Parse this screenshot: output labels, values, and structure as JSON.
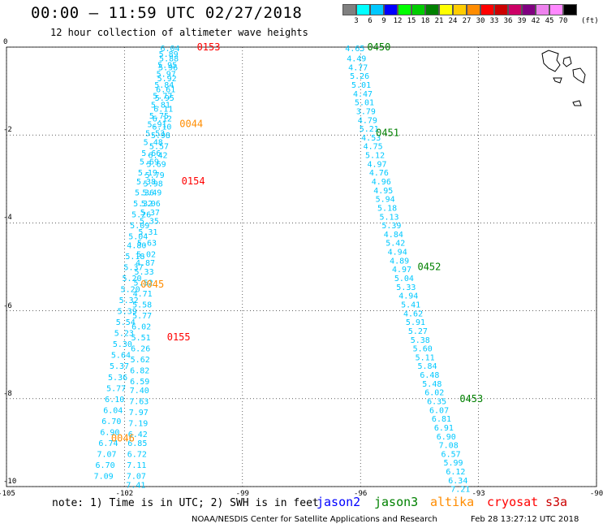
{
  "header": {
    "title": "00:00 – 11:59 UTC 02/27/2018",
    "subtitle": "12 hour collection of altimeter wave heights",
    "unit": "(ft)"
  },
  "scale": {
    "labels": [
      "3",
      "6",
      "9",
      "12",
      "15",
      "18",
      "21",
      "24",
      "27",
      "30",
      "33",
      "36",
      "39",
      "42",
      "45",
      "70"
    ],
    "colors": [
      "#808080",
      "#00ffff",
      "#00c8ff",
      "#0000ff",
      "#00ff00",
      "#00cc00",
      "#008000",
      "#ffff00",
      "#ffcc00",
      "#ff8c00",
      "#ff0000",
      "#cc0000",
      "#cc0066",
      "#800080",
      "#ee82ee",
      "#ff88ff",
      "#000000"
    ]
  },
  "footer": {
    "note": "note: 1) Time is in UTC; 2) SWH is in feet",
    "legend": [
      {
        "name": "jason2",
        "color": "#0000ff"
      },
      {
        "name": "jason3",
        "color": "#008000"
      },
      {
        "name": "altika",
        "color": "#ff8c00"
      },
      {
        "name": "cryosat",
        "color": "#ff0000"
      },
      {
        "name": "s3a",
        "color": "#cc0000"
      }
    ],
    "credit": "NOAA/NESDIS Center for Satellite Applications and Research",
    "timestamp": "Feb 28 13:27:12 UTC 2018"
  },
  "chart_data": {
    "type": "scatter",
    "xlim": [
      -105,
      -90
    ],
    "ylim": [
      -10,
      0
    ],
    "xticks": [
      "-105",
      "-102",
      "-99",
      "-96",
      "-93",
      "-90"
    ],
    "yticks": [
      "0",
      "-2",
      "-4",
      "-6",
      "-8",
      "-10"
    ],
    "grid": true,
    "point_color": "#00c8ff",
    "tracks": [
      {
        "points": [
          [
            -101.09,
            -0.02,
            "6.04"
          ],
          [
            -101.12,
            -0.25,
            "5.88"
          ],
          [
            -101.14,
            -0.45,
            "5.96"
          ],
          [
            -101.17,
            -0.7,
            "5.92"
          ],
          [
            -101.2,
            -0.95,
            "6.61"
          ],
          [
            -101.23,
            -1.15,
            "5.95"
          ],
          [
            -101.26,
            -1.4,
            "6.11"
          ],
          [
            -101.29,
            -1.62,
            "6.12"
          ],
          [
            -101.3,
            -1.8,
            "6.10"
          ],
          [
            -101.33,
            -2.0,
            "5.98"
          ],
          [
            -101.37,
            -2.25,
            "5.57"
          ],
          [
            -101.4,
            -2.45,
            "6.42"
          ],
          [
            -101.44,
            -2.65,
            "5.69"
          ],
          [
            -101.48,
            -2.9,
            "5.79"
          ],
          [
            -101.52,
            -3.1,
            "5.98"
          ],
          [
            -101.55,
            -3.3,
            "5.49"
          ],
          [
            -101.58,
            -3.55,
            "5.06"
          ],
          [
            -101.6,
            -3.75,
            "5.37"
          ],
          [
            -101.62,
            -3.95,
            "5.35"
          ],
          [
            -101.65,
            -4.2,
            "5.31"
          ],
          [
            -101.68,
            -4.45,
            "5.63"
          ],
          [
            -101.7,
            -4.7,
            "5.02"
          ],
          [
            -101.72,
            -4.9,
            "4.87"
          ],
          [
            -101.75,
            -5.1,
            "5.33"
          ],
          [
            -101.77,
            -5.35,
            "5.52"
          ],
          [
            -101.79,
            -5.6,
            "4.71"
          ],
          [
            -101.8,
            -5.85,
            "5.58"
          ],
          [
            -101.8,
            -6.1,
            "5.77"
          ],
          [
            -101.82,
            -6.35,
            "6.02"
          ],
          [
            -101.83,
            -6.6,
            "5.51"
          ],
          [
            -101.84,
            -6.85,
            "6.26"
          ],
          [
            -101.85,
            -7.1,
            "5.62"
          ],
          [
            -101.86,
            -7.35,
            "6.82"
          ],
          [
            -101.86,
            -7.6,
            "6.59"
          ],
          [
            -101.87,
            -7.8,
            "7.40"
          ],
          [
            -101.88,
            -8.05,
            "7.63"
          ],
          [
            -101.89,
            -8.3,
            "7.97"
          ],
          [
            -101.9,
            -8.55,
            "7.19"
          ],
          [
            -101.91,
            -8.8,
            "6.42"
          ],
          [
            -101.92,
            -9.0,
            "6.85"
          ],
          [
            -101.93,
            -9.25,
            "6.72"
          ],
          [
            -101.94,
            -9.5,
            "7.11"
          ],
          [
            -101.95,
            -9.75,
            "7.07"
          ],
          [
            -101.96,
            -9.95,
            "7.41"
          ]
        ]
      },
      {
        "points": [
          [
            -101.13,
            -0.15,
            "5.89"
          ],
          [
            -101.16,
            -0.4,
            "5.95"
          ],
          [
            -101.19,
            -0.6,
            "5.97"
          ],
          [
            -101.24,
            -0.85,
            "5.84"
          ],
          [
            -101.28,
            -1.1,
            "5.77"
          ],
          [
            -101.33,
            -1.3,
            "5.81"
          ],
          [
            -101.37,
            -1.55,
            "5.75"
          ],
          [
            -101.42,
            -1.75,
            "5.91"
          ],
          [
            -101.47,
            -1.95,
            "5.53"
          ],
          [
            -101.52,
            -2.15,
            "5.48"
          ],
          [
            -101.57,
            -2.4,
            "5.66"
          ],
          [
            -101.62,
            -2.6,
            "5.69"
          ],
          [
            -101.66,
            -2.85,
            "5.19"
          ],
          [
            -101.7,
            -3.05,
            "5.38"
          ],
          [
            -101.74,
            -3.3,
            "5.36"
          ],
          [
            -101.78,
            -3.55,
            "5.32"
          ],
          [
            -101.82,
            -3.8,
            "5.26"
          ],
          [
            -101.86,
            -4.05,
            "5.09"
          ],
          [
            -101.9,
            -4.3,
            "5.04"
          ],
          [
            -101.94,
            -4.5,
            "4.80"
          ],
          [
            -101.98,
            -4.75,
            "5.18"
          ],
          [
            -102.02,
            -5.0,
            "5.37"
          ],
          [
            -102.06,
            -5.25,
            "5.20"
          ],
          [
            -102.1,
            -5.5,
            "5.20"
          ],
          [
            -102.14,
            -5.75,
            "5.32"
          ],
          [
            -102.18,
            -6.0,
            "5.39"
          ],
          [
            -102.22,
            -6.25,
            "5.54"
          ],
          [
            -102.26,
            -6.5,
            "5.23"
          ],
          [
            -102.3,
            -6.75,
            "5.30"
          ],
          [
            -102.34,
            -7.0,
            "5.64"
          ],
          [
            -102.38,
            -7.25,
            "5.37"
          ],
          [
            -102.42,
            -7.5,
            "5.36"
          ],
          [
            -102.46,
            -7.75,
            "5.77"
          ],
          [
            -102.5,
            -8.0,
            "6.10"
          ],
          [
            -102.54,
            -8.25,
            "6.04"
          ],
          [
            -102.58,
            -8.5,
            "6.70"
          ],
          [
            -102.62,
            -8.75,
            "6.90"
          ],
          [
            -102.66,
            -9.0,
            "6.74"
          ],
          [
            -102.7,
            -9.25,
            "7.07"
          ],
          [
            -102.74,
            -9.5,
            "6.70"
          ],
          [
            -102.78,
            -9.75,
            "7.09"
          ]
        ]
      },
      {
        "points": [
          [
            -96.39,
            -0.02,
            "4.65"
          ],
          [
            -96.35,
            -0.25,
            "4.49"
          ],
          [
            -96.31,
            -0.45,
            "4.77"
          ],
          [
            -96.27,
            -0.65,
            "5.26"
          ],
          [
            -96.23,
            -0.85,
            "5.01"
          ],
          [
            -96.19,
            -1.05,
            "4.47"
          ],
          [
            -96.15,
            -1.25,
            "5.01"
          ],
          [
            -96.11,
            -1.45,
            "3.79"
          ],
          [
            -96.07,
            -1.65,
            "4.79"
          ],
          [
            -96.03,
            -1.85,
            "5.21"
          ],
          [
            -95.98,
            -2.05,
            "4.53"
          ],
          [
            -95.93,
            -2.25,
            "4.75"
          ],
          [
            -95.88,
            -2.45,
            "5.12"
          ],
          [
            -95.83,
            -2.65,
            "4.97"
          ],
          [
            -95.78,
            -2.85,
            "4.76"
          ],
          [
            -95.72,
            -3.05,
            "4.96"
          ],
          [
            -95.67,
            -3.25,
            "4.95"
          ],
          [
            -95.62,
            -3.45,
            "5.94"
          ],
          [
            -95.57,
            -3.65,
            "5.18"
          ],
          [
            -95.52,
            -3.85,
            "5.13"
          ],
          [
            -95.46,
            -4.05,
            "5.39"
          ],
          [
            -95.41,
            -4.25,
            "4.84"
          ],
          [
            -95.36,
            -4.45,
            "5.42"
          ],
          [
            -95.31,
            -4.65,
            "4.94"
          ],
          [
            -95.26,
            -4.85,
            "4.89"
          ],
          [
            -95.2,
            -5.05,
            "4.97"
          ],
          [
            -95.14,
            -5.25,
            "5.04"
          ],
          [
            -95.09,
            -5.45,
            "5.33"
          ],
          [
            -95.03,
            -5.65,
            "4.94"
          ],
          [
            -94.97,
            -5.85,
            "5.41"
          ],
          [
            -94.91,
            -6.05,
            "4.62"
          ],
          [
            -94.85,
            -6.25,
            "5.91"
          ],
          [
            -94.79,
            -6.45,
            "5.27"
          ],
          [
            -94.73,
            -6.65,
            "5.38"
          ],
          [
            -94.67,
            -6.85,
            "5.60"
          ],
          [
            -94.61,
            -7.05,
            "5.11"
          ],
          [
            -94.55,
            -7.25,
            "5.84"
          ],
          [
            -94.49,
            -7.45,
            "6.48"
          ],
          [
            -94.43,
            -7.65,
            "5.48"
          ],
          [
            -94.37,
            -7.85,
            "6.02"
          ],
          [
            -94.31,
            -8.05,
            "6.35"
          ],
          [
            -94.25,
            -8.25,
            "6.07"
          ],
          [
            -94.19,
            -8.45,
            "6.81"
          ],
          [
            -94.13,
            -8.65,
            "6.91"
          ],
          [
            -94.07,
            -8.85,
            "6.90"
          ],
          [
            -94.01,
            -9.05,
            "7.08"
          ],
          [
            -93.95,
            -9.25,
            "6.57"
          ],
          [
            -93.89,
            -9.45,
            "5.99"
          ],
          [
            -93.83,
            -9.65,
            "6.12"
          ],
          [
            -93.77,
            -9.85,
            "6.34"
          ],
          [
            -93.71,
            -10.05,
            "7.21"
          ]
        ]
      }
    ],
    "time_labels": [
      {
        "text": "0153",
        "x": -100.16,
        "y": 0.0,
        "color": "#ff0000"
      },
      {
        "text": "0044",
        "x": -100.6,
        "y": -1.75,
        "color": "#ff8c00"
      },
      {
        "text": "0154",
        "x": -100.55,
        "y": -3.05,
        "color": "#ff0000"
      },
      {
        "text": "0045",
        "x": -101.59,
        "y": -5.4,
        "color": "#ff8c00"
      },
      {
        "text": "0155",
        "x": -100.92,
        "y": -6.6,
        "color": "#ff0000"
      },
      {
        "text": "0046",
        "x": -102.34,
        "y": -8.9,
        "color": "#ff8c00"
      },
      {
        "text": "0450",
        "x": -95.83,
        "y": 0.0,
        "color": "#008000"
      },
      {
        "text": "0451",
        "x": -95.61,
        "y": -1.95,
        "color": "#008000"
      },
      {
        "text": "0452",
        "x": -94.55,
        "y": -5.0,
        "color": "#008000"
      },
      {
        "text": "0453",
        "x": -93.48,
        "y": -8.0,
        "color": "#008000"
      }
    ]
  }
}
